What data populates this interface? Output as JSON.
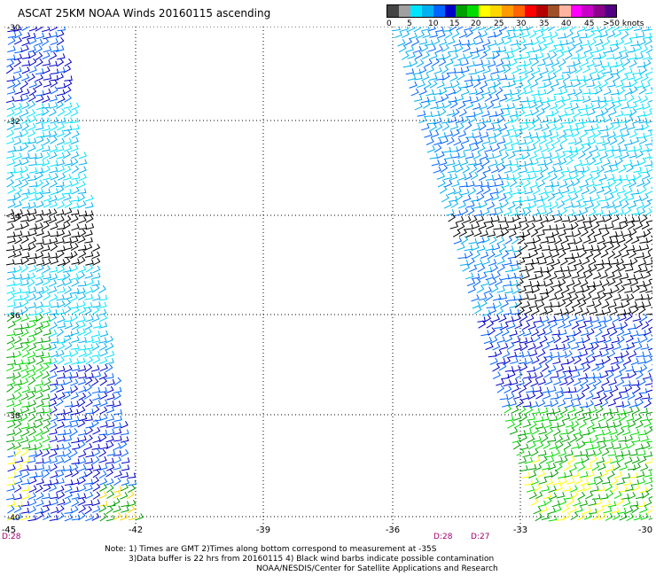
{
  "title": "ASCAT 25KM NOAA Winds 20160115 ascending",
  "legend": {
    "labels": [
      "0",
      "5",
      "10",
      "15",
      "20",
      "25",
      "30",
      "35",
      "40",
      "45",
      ">50 knots"
    ],
    "colors": [
      "#444444",
      "#a0a0a0",
      "#00e5ff",
      "#00b0f0",
      "#0064ff",
      "#0000c8",
      "#00a000",
      "#00dc00",
      "#ffff00",
      "#ffd700",
      "#ff9a00",
      "#ff6400",
      "#ff0000",
      "#b40000",
      "#a05028",
      "#ffb4a0",
      "#ff00ff",
      "#c800c8",
      "#8c008c",
      "#500080"
    ]
  },
  "map": {
    "x_ticks": [
      "-45",
      "-42",
      "-39",
      "-36",
      "-33",
      "-30"
    ],
    "y_ticks": [
      "-30",
      "-32",
      "-34",
      "-36",
      "-38",
      "-40"
    ],
    "swath_times": [
      "D:28",
      "D:28",
      "D:27"
    ]
  },
  "notes": {
    "line1": "Note: 1) Times are GMT 2)Times along bottom correspond to measurement at -35S",
    "line2": "3)Data buffer is 22 hrs from 20160115 4) Black wind barbs indicate possible contamination",
    "line3": "NOAA/NESDIS/Center for Satellite Applications and Research"
  }
}
